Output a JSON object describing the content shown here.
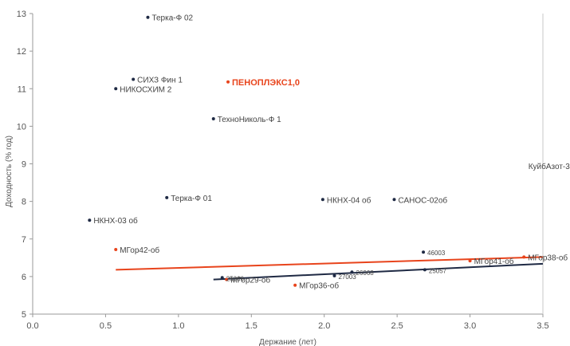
{
  "chart_data": {
    "type": "scatter",
    "xlabel": "Держание (лет)",
    "ylabel": "Доходность (% год)",
    "xlim": [
      0,
      3.5
    ],
    "ylim": [
      5,
      13
    ],
    "x_ticks": [
      "0.0",
      "0.5",
      "1.0",
      "1.5",
      "2.0",
      "2.5",
      "3.0",
      "3.5"
    ],
    "y_ticks": [
      "5",
      "6",
      "7",
      "8",
      "9",
      "10",
      "11",
      "12",
      "13"
    ],
    "grid": false,
    "series": [
      {
        "color": "#1f2a44",
        "points": [
          {
            "x": 0.79,
            "y": 12.9,
            "label": "Терка-Ф 02"
          },
          {
            "x": 0.69,
            "y": 11.25,
            "label": "СИХЗ Фин 1"
          },
          {
            "x": 0.57,
            "y": 11.0,
            "label": "НИКОСХИМ 2"
          },
          {
            "x": 1.24,
            "y": 10.2,
            "label": "ТехноНиколь-Ф 1"
          },
          {
            "x": 0.92,
            "y": 8.1,
            "label": "Терка-Ф 01"
          },
          {
            "x": 1.99,
            "y": 8.05,
            "label": "НКНХ-04 об"
          },
          {
            "x": 2.48,
            "y": 8.05,
            "label": "САНОС-02об"
          },
          {
            "x": 0.39,
            "y": 7.5,
            "label": "НКНХ-03 об"
          },
          {
            "x": 2.68,
            "y": 6.65,
            "label": "46003"
          },
          {
            "x": 2.69,
            "y": 6.18,
            "label": "25057"
          },
          {
            "x": 2.19,
            "y": 6.12,
            "label": "26068"
          },
          {
            "x": 2.07,
            "y": 6.02,
            "label": "27003"
          },
          {
            "x": 1.3,
            "y": 5.97,
            "label": "25066"
          }
        ]
      },
      {
        "color": "#e8441c",
        "points": [
          {
            "x": 1.34,
            "y": 11.18,
            "label": "ПЕНОПЛЭКС1,0",
            "highlight": true
          },
          {
            "x": 0.57,
            "y": 6.72,
            "label": "МГор42-об"
          },
          {
            "x": 1.33,
            "y": 5.92,
            "label": "МГор29-об"
          },
          {
            "x": 1.8,
            "y": 5.77,
            "label": "МГор36-об"
          },
          {
            "x": 3.0,
            "y": 6.42,
            "label": "МГор41-об"
          },
          {
            "x": 3.37,
            "y": 6.52,
            "label": "МГор38-об"
          }
        ]
      }
    ],
    "trendlines": [
      {
        "color": "#e8441c",
        "from": {
          "x": 0.57,
          "y": 6.18
        },
        "to": {
          "x": 3.5,
          "y": 6.52
        }
      },
      {
        "color": "#1f2a44",
        "from": {
          "x": 1.24,
          "y": 5.92
        },
        "to": {
          "x": 3.5,
          "y": 6.34
        }
      }
    ],
    "annotations": [
      {
        "text": "КуйбАзот-3",
        "x": 3.4,
        "y": 8.95
      }
    ]
  }
}
